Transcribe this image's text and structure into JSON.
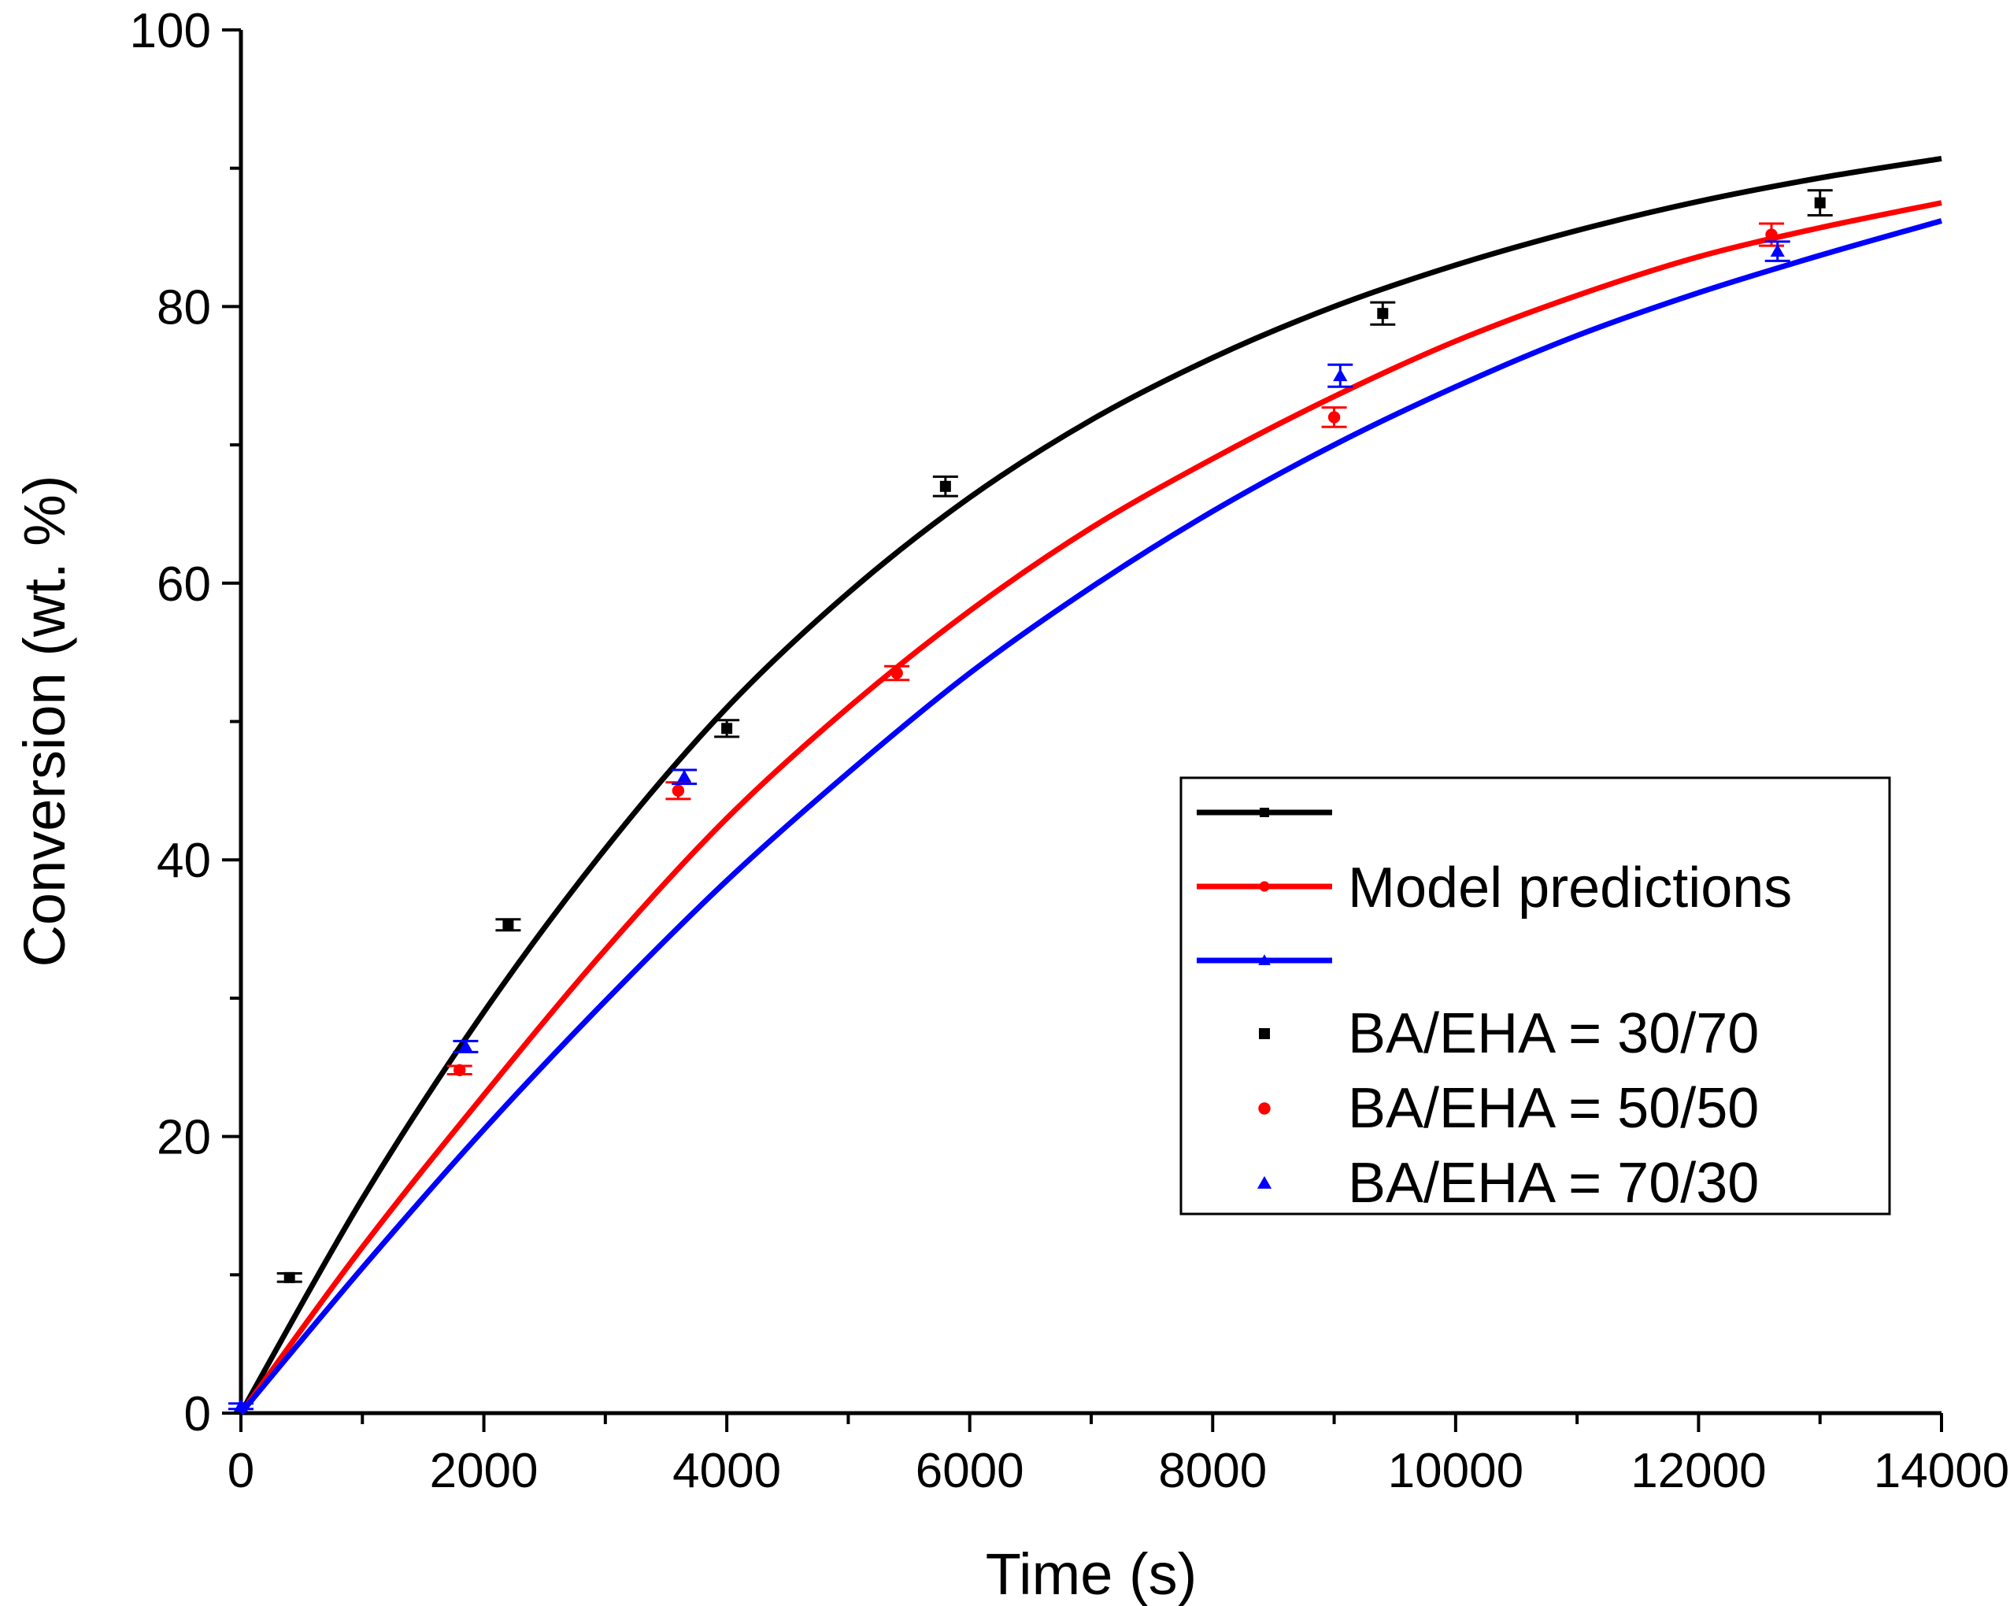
{
  "chart_data": {
    "type": "line",
    "title": "",
    "xlabel": "Time (s)",
    "ylabel": "Conversion (wt. %)",
    "xlim": [
      0,
      14000
    ],
    "ylim": [
      0,
      100
    ],
    "x_major_ticks": [
      0,
      2000,
      4000,
      6000,
      8000,
      10000,
      12000,
      14000
    ],
    "x_minor_ticks": [
      1000,
      3000,
      5000,
      7000,
      9000,
      11000,
      13000
    ],
    "y_major_ticks": [
      0,
      20,
      40,
      60,
      80,
      100
    ],
    "y_minor_ticks": [
      10,
      30,
      50,
      70,
      90
    ],
    "x_tick_labels": [
      "0",
      "2000",
      "4000",
      "6000",
      "8000",
      "10000",
      "12000",
      "14000"
    ],
    "y_tick_labels": [
      "0",
      "20",
      "40",
      "60",
      "80",
      "100"
    ],
    "grid": false,
    "legend_position": "lower-right",
    "model_legend_label": "Model predictions",
    "series": [
      {
        "name": "BA/EHA = 30/70",
        "color": "#000000",
        "marker": "square",
        "model": {
          "x": [
            0,
            1000,
            2000,
            3000,
            4000,
            5000,
            6000,
            7000,
            8000,
            9000,
            10000,
            11000,
            12000,
            13000,
            14000
          ],
          "y": [
            0,
            15.5,
            29.0,
            40.8,
            51.0,
            59.3,
            66.2,
            71.8,
            76.3,
            80.0,
            83.0,
            85.5,
            87.6,
            89.3,
            90.7
          ]
        },
        "points": {
          "x": [
            400,
            2200,
            4000,
            5800,
            9400,
            13000
          ],
          "y": [
            9.8,
            35.3,
            49.5,
            67.0,
            79.5,
            87.5
          ],
          "err": [
            0.3,
            0.4,
            0.6,
            0.7,
            0.8,
            0.9
          ]
        }
      },
      {
        "name": "BA/EHA = 50/50",
        "color": "#ff0000",
        "marker": "circle",
        "model": {
          "x": [
            0,
            1000,
            2000,
            3000,
            4000,
            5000,
            6000,
            7000,
            8000,
            9000,
            10000,
            11000,
            12000,
            13000,
            14000
          ],
          "y": [
            0,
            12.0,
            23.0,
            33.5,
            43.0,
            51.0,
            58.0,
            64.0,
            69.0,
            73.5,
            77.5,
            80.8,
            83.6,
            85.7,
            87.5
          ]
        },
        "points": {
          "x": [
            1800,
            3600,
            5400,
            9000,
            12600
          ],
          "y": [
            24.8,
            45.0,
            53.5,
            72.0,
            85.2
          ],
          "err": [
            0.3,
            0.6,
            0.5,
            0.7,
            0.8
          ]
        }
      },
      {
        "name": "BA/EHA = 70/30",
        "color": "#0000ff",
        "marker": "triangle",
        "model": {
          "x": [
            0,
            1000,
            2000,
            3000,
            4000,
            5000,
            6000,
            7000,
            8000,
            9000,
            10000,
            11000,
            12000,
            13000,
            14000
          ],
          "y": [
            0,
            10.5,
            20.5,
            29.8,
            38.5,
            46.3,
            53.5,
            59.7,
            65.2,
            70.0,
            74.2,
            77.9,
            81.0,
            83.7,
            86.2
          ]
        },
        "points": {
          "x": [
            0,
            1850,
            3650,
            9050,
            12650
          ],
          "y": [
            0.5,
            26.5,
            46.0,
            75.0,
            84.0
          ],
          "err": [
            0.2,
            0.4,
            0.5,
            0.8,
            0.7
          ]
        }
      }
    ]
  }
}
